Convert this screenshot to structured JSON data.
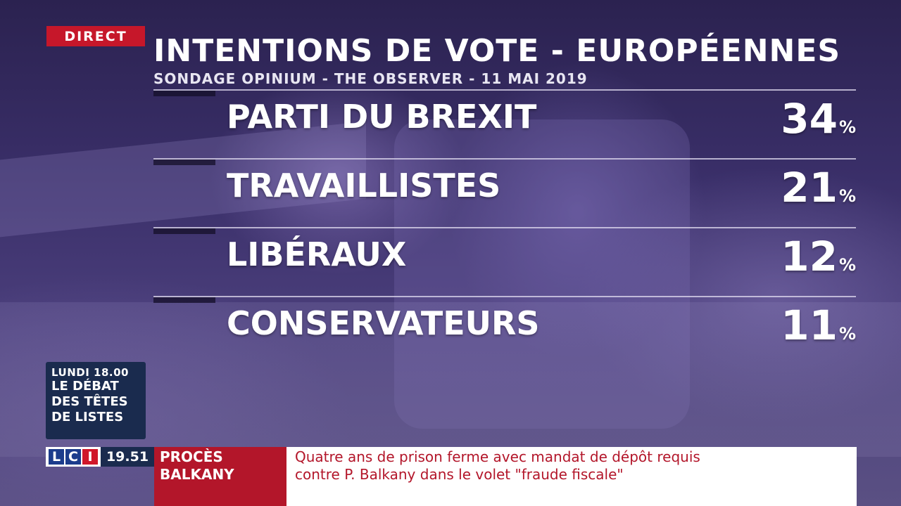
{
  "badge": {
    "live_label": "DIRECT"
  },
  "header": {
    "title": "INTENTIONS DE VOTE - EUROPÉENNES",
    "subtitle": "SONDAGE OPINIUM - THE OBSERVER - 11 MAI 2019"
  },
  "results": [
    {
      "party": "PARTI DU BREXIT",
      "value": "34",
      "unit": "%"
    },
    {
      "party": "TRAVAILLISTES",
      "value": "21",
      "unit": "%"
    },
    {
      "party": "LIBÉRAUX",
      "value": "12",
      "unit": "%"
    },
    {
      "party": "CONSERVATEURS",
      "value": "11",
      "unit": "%"
    }
  ],
  "promo": {
    "time": "LUNDI 18.00",
    "line1": "LE DÉBAT",
    "line2": "DES TÊTES",
    "line3": "DE LISTES"
  },
  "ticker": {
    "channel_letters": [
      "L",
      "C",
      "I"
    ],
    "clock": "19.51",
    "topic_line1": "PROCÈS",
    "topic_line2": "BALKANY",
    "news_line1": "Quatre ans de prison ferme avec mandat de dépôt requis",
    "news_line2": "contre P. Balkany dans le volet \"fraude fiscale\""
  },
  "colors": {
    "live_red": "#c6172a",
    "ticker_red": "#b3162a",
    "navy": "#1a2b4e",
    "background_purple": "#3a2f69"
  }
}
